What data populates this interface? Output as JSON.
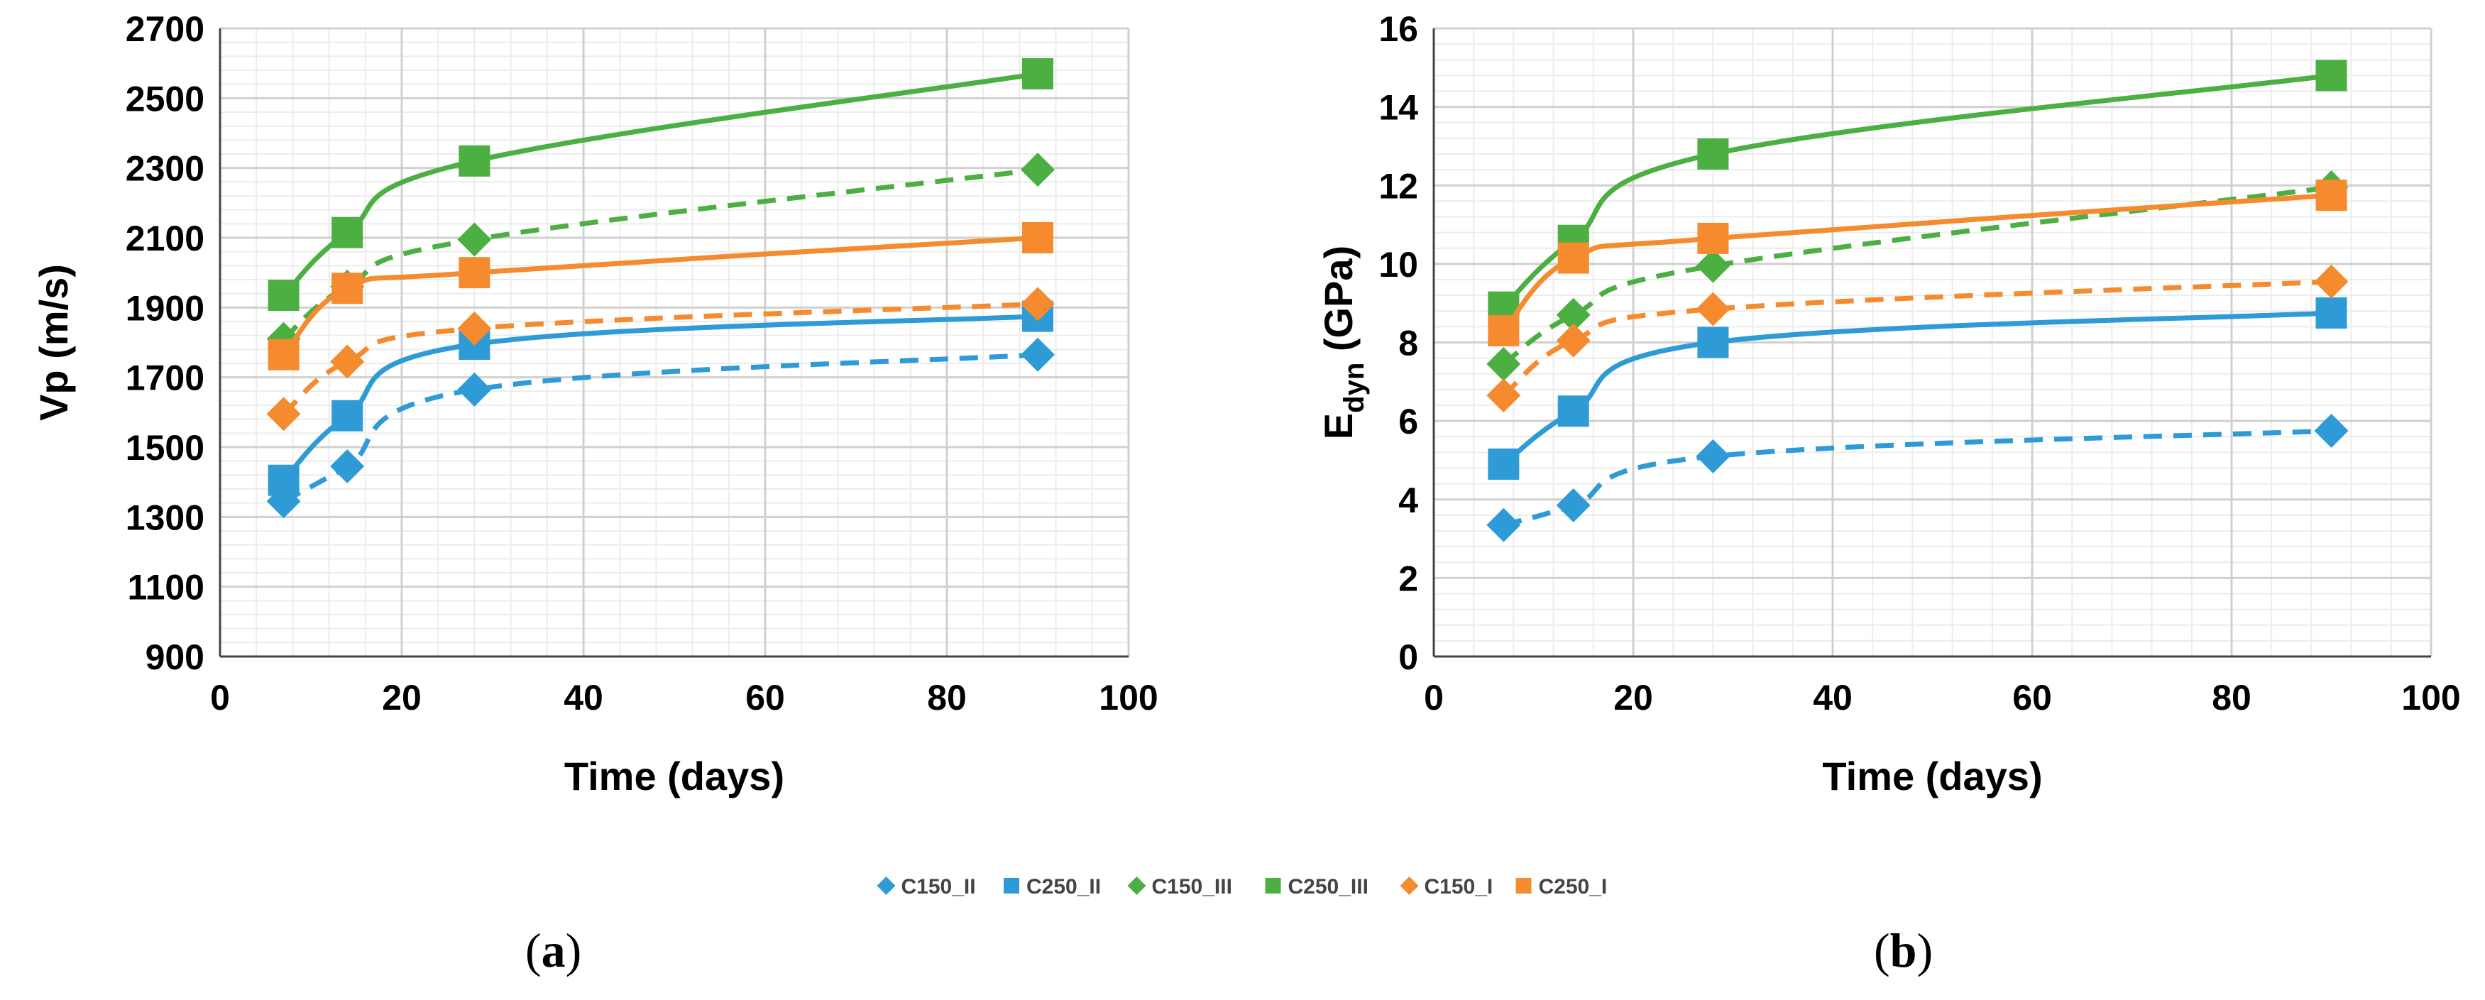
{
  "colors": {
    "blue": "#2e9bd6",
    "green": "#4caf42",
    "orange": "#f58a2e",
    "grid_major": "#d0d0d0",
    "grid_minor": "#ececec",
    "axis": "#444444"
  },
  "panels": {
    "a": {
      "paren_open": "(",
      "letter": "a",
      "paren_close": ")"
    },
    "b": {
      "paren_open": "(",
      "letter": "b",
      "paren_close": ")"
    }
  },
  "chart_data": [
    {
      "type": "line",
      "panel": "a",
      "xlabel": "Time (days)",
      "ylabel": "Vp (m/s)",
      "xlim": [
        0,
        100
      ],
      "ylim": [
        900,
        2700
      ],
      "xticks": [
        0,
        20,
        40,
        60,
        80,
        100
      ],
      "yticks": [
        900,
        1100,
        1300,
        1500,
        1700,
        1900,
        2100,
        2300,
        2500,
        2700
      ],
      "x": [
        7,
        14,
        28,
        90
      ],
      "series": [
        {
          "name": "C150_II",
          "color": "blue",
          "marker": "diamond",
          "dashed": true,
          "values": [
            1345,
            1445,
            1665,
            1765
          ]
        },
        {
          "name": "C250_II",
          "color": "blue",
          "marker": "square",
          "dashed": false,
          "values": [
            1405,
            1590,
            1795,
            1875
          ]
        },
        {
          "name": "C150_III",
          "color": "green",
          "marker": "diamond",
          "dashed": true,
          "values": [
            1810,
            1960,
            2095,
            2295
          ]
        },
        {
          "name": "C250_III",
          "color": "green",
          "marker": "square",
          "dashed": false,
          "values": [
            1935,
            2115,
            2320,
            2570
          ]
        },
        {
          "name": "C150_I",
          "color": "orange",
          "marker": "diamond",
          "dashed": true,
          "values": [
            1595,
            1745,
            1840,
            1910
          ]
        },
        {
          "name": "C250_I",
          "color": "orange",
          "marker": "square",
          "dashed": false,
          "values": [
            1765,
            1955,
            2000,
            2100
          ]
        }
      ]
    },
    {
      "type": "line",
      "panel": "b",
      "xlabel": "Time (days)",
      "ylabel": "E",
      "ylabel_sub": "dyn",
      "ylabel_unit": " (GPa)",
      "xlim": [
        0,
        100
      ],
      "ylim": [
        0,
        16
      ],
      "xticks": [
        0,
        20,
        40,
        60,
        80,
        100
      ],
      "yticks": [
        0,
        2,
        4,
        6,
        8,
        10,
        12,
        14,
        16
      ],
      "x": [
        7,
        14,
        28,
        90
      ],
      "series": [
        {
          "name": "C150_II",
          "color": "blue",
          "marker": "diamond",
          "dashed": true,
          "values": [
            3.35,
            3.85,
            5.1,
            5.75
          ]
        },
        {
          "name": "C250_II",
          "color": "blue",
          "marker": "square",
          "dashed": false,
          "values": [
            4.9,
            6.25,
            8.0,
            8.75
          ]
        },
        {
          "name": "C150_III",
          "color": "green",
          "marker": "diamond",
          "dashed": true,
          "values": [
            7.45,
            8.7,
            9.95,
            11.95
          ]
        },
        {
          "name": "C250_III",
          "color": "green",
          "marker": "square",
          "dashed": false,
          "values": [
            8.9,
            10.6,
            12.8,
            14.8
          ]
        },
        {
          "name": "C150_I",
          "color": "orange",
          "marker": "diamond",
          "dashed": true,
          "values": [
            6.65,
            8.05,
            8.85,
            9.55
          ]
        },
        {
          "name": "C250_I",
          "color": "orange",
          "marker": "square",
          "dashed": false,
          "values": [
            8.3,
            10.15,
            10.65,
            11.75
          ]
        }
      ]
    }
  ]
}
